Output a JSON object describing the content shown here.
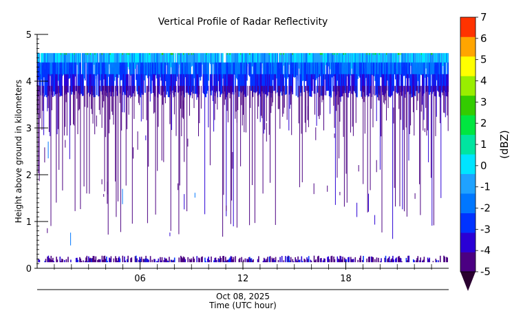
{
  "chart_data": {
    "type": "heatmap",
    "title": "Vertical Profile of Radar Reflectivity",
    "ylabel": "Height above ground in kilometers",
    "xlabel_date": "Oct 08, 2025",
    "xlabel": "Time (UTC hour)",
    "xlim": [
      0,
      24
    ],
    "ylim": [
      0,
      5
    ],
    "echo_top_km": 4.6,
    "x_ticks": [
      6,
      12,
      18
    ],
    "x_tick_labels": [
      "06",
      "12",
      "18"
    ],
    "y_ticks": [
      0,
      1,
      2,
      3,
      4,
      5
    ],
    "y_tick_labels": [
      "0",
      "1",
      "2",
      "3",
      "4",
      "5"
    ],
    "colorbar": {
      "label": "(dBZ)",
      "levels": [
        -5,
        -4,
        -3,
        -2,
        -1,
        0,
        1,
        2,
        3,
        4,
        5,
        6,
        7
      ],
      "level_labels": [
        "-5",
        "-4",
        "-3",
        "-2",
        "-1",
        "0",
        "1",
        "2",
        "3",
        "4",
        "5",
        "6",
        "7"
      ],
      "colors": [
        "#4b0082",
        "#2a00d5",
        "#0033ff",
        "#0077ff",
        "#1fa2ff",
        "#00e5ff",
        "#00e5a0",
        "#00e640",
        "#33cc00",
        "#99ee00",
        "#ffff00",
        "#ffa500",
        "#ff3300"
      ],
      "under_color": "#2a0030",
      "extend": "min"
    },
    "layers": [
      {
        "band_km": [
          4.4,
          4.6
        ],
        "typical_dbz": -1
      },
      {
        "band_km": [
          3.9,
          4.4
        ],
        "typical_dbz": -3
      },
      {
        "band_km": [
          3.2,
          3.9
        ],
        "typical_dbz": -4.5
      },
      {
        "band_km": [
          0.15,
          3.2
        ],
        "typical_dbz": -4.5,
        "coverage": "sparse"
      },
      {
        "band_km": [
          0.15,
          0.3
        ],
        "typical_dbz": -3.5
      }
    ]
  }
}
